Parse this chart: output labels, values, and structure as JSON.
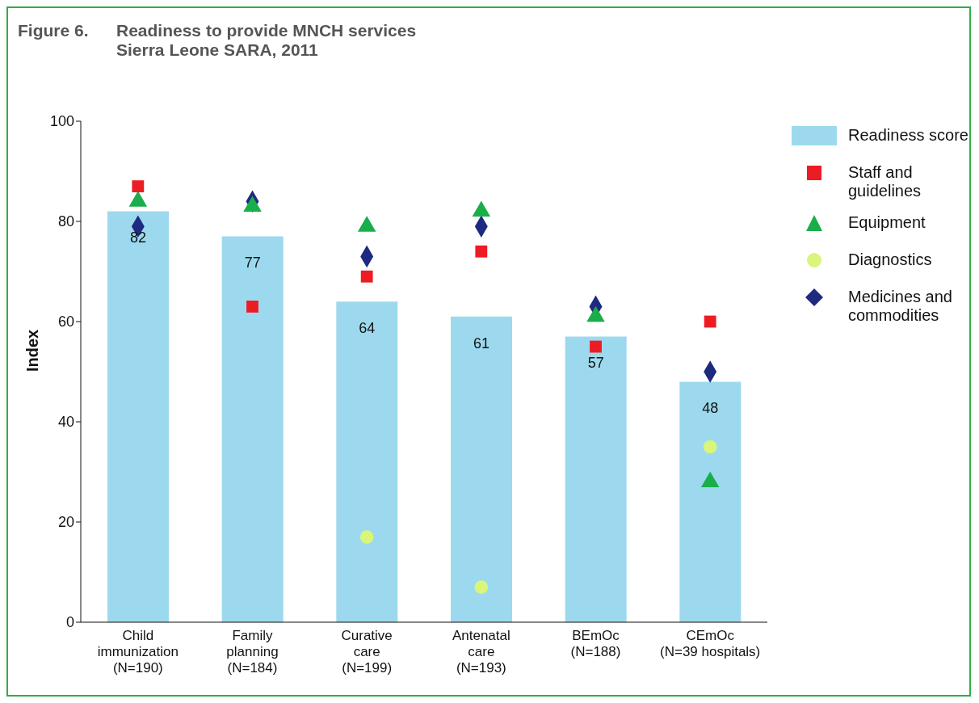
{
  "chart_data": {
    "type": "bar",
    "title": "Readiness to provide MNCH services",
    "subtitle": "Sierra Leone SARA, 2011",
    "annotations": [
      "Figure 6."
    ],
    "ylabel": "Index",
    "categories": [
      "Child\nimmunization\n(N=190)",
      "Family\nplanning\n(N=184)",
      "Curative\ncare\n(N=199)",
      "Antenatal\ncare\n(N=193)",
      "BEmOc\n(N=188)",
      "CEmOc\n(N=39 hospitals)"
    ],
    "series": [
      {
        "name": "Readiness score",
        "color": "#9dd9ee",
        "values": [
          82,
          77,
          64,
          61,
          57,
          48
        ],
        "data_labels": true
      },
      {
        "name": "Staff and guidelines",
        "type": "scatter",
        "marker": "square",
        "color": "#ed1c24",
        "values": [
          87,
          63,
          69,
          74,
          55,
          60
        ]
      },
      {
        "name": "Equipment",
        "type": "scatter",
        "marker": "triangle",
        "color": "#1aae4a",
        "values": [
          84,
          83,
          79,
          82,
          61,
          28
        ]
      },
      {
        "name": "Diagnostics",
        "type": "scatter",
        "marker": "circle",
        "color": "#d9f57a",
        "values": [
          null,
          null,
          17,
          7,
          null,
          35
        ]
      },
      {
        "name": "Medicines and commodities",
        "type": "scatter",
        "marker": "diamond",
        "color": "#1e2a80",
        "values": [
          79,
          84,
          73,
          79,
          63,
          50
        ]
      }
    ],
    "ylim": [
      0,
      100
    ],
    "yticks": [
      0,
      20,
      40,
      60,
      80,
      100
    ],
    "legend": "right"
  }
}
